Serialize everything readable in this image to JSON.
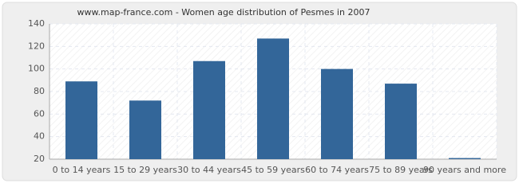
{
  "chart_data": {
    "type": "bar",
    "title": "www.map-france.com - Women age distribution of Pesmes in 2007",
    "categories": [
      "0 to 14 years",
      "15 to 29 years",
      "30 to 44 years",
      "45 to 59 years",
      "60 to 74 years",
      "75 to 89 years",
      "90 years and more"
    ],
    "values": [
      89,
      72,
      107,
      127,
      100,
      87,
      21
    ],
    "color": "#336699",
    "ylim": [
      20,
      140
    ],
    "yticks": [
      20,
      40,
      60,
      80,
      100,
      120,
      140
    ],
    "grid": true
  }
}
